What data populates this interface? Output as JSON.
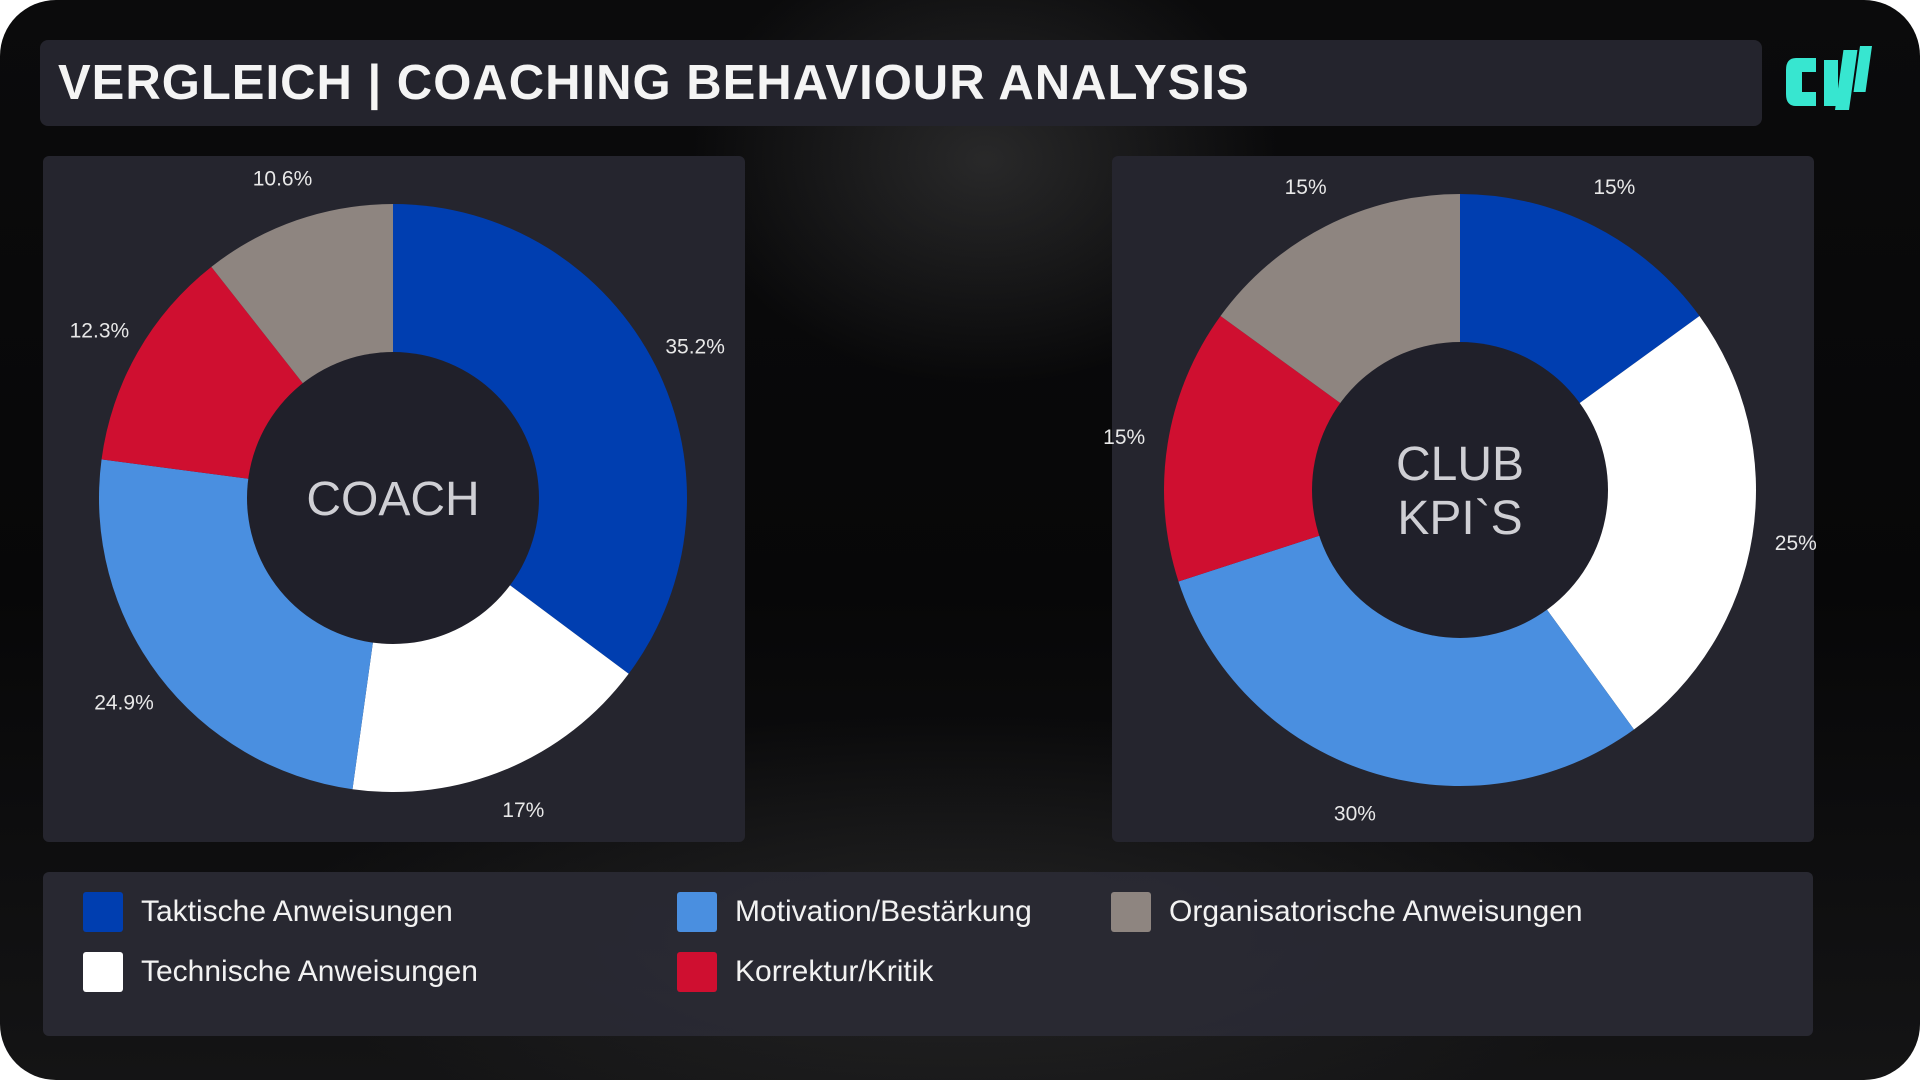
{
  "title": "VERGLEICH | COACHING BEHAVIOUR ANALYSIS",
  "logo": {
    "icon": "ch-logo-icon",
    "color": "#37e6d0"
  },
  "colors": {
    "taktische": "#003eb0",
    "motivation": "#4a8fe0",
    "technische": "#ffffff",
    "korrektur": "#cf0f30",
    "organisatorische": "#8e8580",
    "hole": "#20202a"
  },
  "legend": [
    {
      "key": "taktische",
      "label": "Taktische Anweisungen"
    },
    {
      "key": "motivation",
      "label": "Motivation/Bestärkung"
    },
    {
      "key": "organisatorische",
      "label": "Organisatorische Anweisungen"
    },
    {
      "key": "technische",
      "label": "Technische Anweisungen"
    },
    {
      "key": "korrektur",
      "label": "Korrektur/Kritik"
    }
  ],
  "chart_data": [
    {
      "type": "pie",
      "center_label": [
        "COACH"
      ],
      "slices": [
        {
          "key": "taktische",
          "value": 35.2,
          "label": "35.2%"
        },
        {
          "key": "technische",
          "value": 17,
          "label": "17%"
        },
        {
          "key": "motivation",
          "value": 24.9,
          "label": "24.9%"
        },
        {
          "key": "korrektur",
          "value": 12.3,
          "label": "12.3%"
        },
        {
          "key": "organisatorische",
          "value": 10.6,
          "label": "10.6%"
        }
      ]
    },
    {
      "type": "pie",
      "center_label": [
        "CLUB",
        "KPI`S"
      ],
      "slices": [
        {
          "key": "taktische",
          "value": 15,
          "label": "15%"
        },
        {
          "key": "technische",
          "value": 25,
          "label": "25%"
        },
        {
          "key": "motivation",
          "value": 30,
          "label": "30%"
        },
        {
          "key": "korrektur",
          "value": 15,
          "label": "15%"
        },
        {
          "key": "organisatorische",
          "value": 15,
          "label": "15%"
        }
      ]
    }
  ]
}
